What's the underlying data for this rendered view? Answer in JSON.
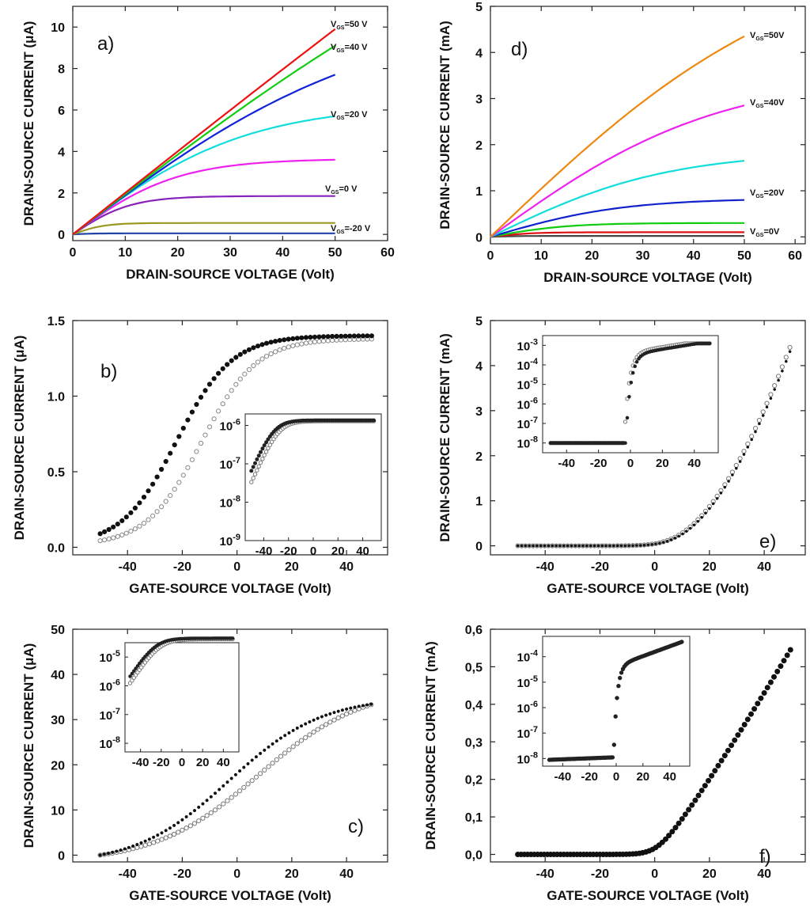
{
  "chart_data": [
    {
      "id": "a",
      "type": "line",
      "panel_label": "a)",
      "xlabel": "DRAIN-SOURCE VOLTAGE  (Volt)",
      "ylabel": "DRAIN-SOURCE CURRENT  (μA)",
      "xlim": [
        0,
        60
      ],
      "ylim": [
        -0.3,
        11
      ],
      "xticks": [
        0,
        10,
        20,
        30,
        40,
        50,
        60
      ],
      "yticks": [
        0,
        2,
        4,
        6,
        8,
        10
      ],
      "series": [
        {
          "name": "VGS=50 V",
          "color": "#ee1111",
          "sat": 9.9,
          "vknee": 250
        },
        {
          "name": "VGS=40 V",
          "color": "#11cc11",
          "sat": 9.1,
          "vknee": 110
        },
        {
          "name": "",
          "color": "#1122dd",
          "sat": 7.7,
          "vknee": 58
        },
        {
          "name": "VGS=20 V",
          "color": "#11dddd",
          "sat": 5.7,
          "vknee": 33
        },
        {
          "name": "",
          "color": "#ee22ee",
          "sat": 3.6,
          "vknee": 20
        },
        {
          "name": "VGS=0 V",
          "color": "#8822bb",
          "sat": 1.85,
          "vknee": 11
        },
        {
          "name": "",
          "color": "#999922",
          "sat": 0.55,
          "vknee": 6
        },
        {
          "name": "VGS=-20 V",
          "color": "#2244aa",
          "sat": 0.05,
          "vknee": 4
        }
      ],
      "annotations": [
        "VGS=50 V",
        "VGS=40 V",
        "VGS=20 V",
        "VGS=0 V",
        "VGS=-20 V"
      ]
    },
    {
      "id": "d",
      "type": "line",
      "panel_label": "d)",
      "xlabel": "DRAIN-SOURCE VOLTAGE  (Volt)",
      "ylabel": "DRAIN-SOURCE CURRENT  (mA)",
      "xlim": [
        0,
        62
      ],
      "ylim": [
        -0.15,
        5
      ],
      "xticks": [
        0,
        10,
        20,
        30,
        40,
        50,
        60
      ],
      "yticks": [
        0,
        1,
        2,
        3,
        4,
        5
      ],
      "series": [
        {
          "name": "VGS=50V",
          "color": "#ee8811",
          "sat": 4.35,
          "vknee": 62
        },
        {
          "name": "VGS=40V",
          "color": "#ee22ee",
          "sat": 2.85,
          "vknee": 45
        },
        {
          "name": "",
          "color": "#11dddd",
          "sat": 1.65,
          "vknee": 35
        },
        {
          "name": "VGS=20V",
          "color": "#1122cc",
          "sat": 0.8,
          "vknee": 26
        },
        {
          "name": "",
          "color": "#11cc11",
          "sat": 0.3,
          "vknee": 15
        },
        {
          "name": "",
          "color": "#dd1111",
          "sat": 0.1,
          "vknee": 8
        },
        {
          "name": "VGS=0V",
          "color": "#444444",
          "sat": 0.02,
          "vknee": 5
        }
      ],
      "annotations": [
        "VGS=50V",
        "VGS=40V",
        "VGS=20V",
        "VGS=0V"
      ]
    },
    {
      "id": "b",
      "type": "scatter",
      "panel_label": "b)",
      "xlabel": "GATE-SOURCE VOLTAGE (Volt)",
      "ylabel": "DRAIN-SOURCE CURRENT  (μA)",
      "xlim": [
        -60,
        55
      ],
      "ylim": [
        -0.05,
        1.5
      ],
      "xticks": [
        -40,
        -20,
        0,
        20,
        40
      ],
      "yticks": [
        0.0,
        0.5,
        1.0,
        1.5
      ],
      "ytick_labels": [
        "0.0",
        "0.5",
        "1.0",
        "1.5"
      ],
      "x_range": [
        -50,
        50
      ],
      "forward": {
        "max": 1.39,
        "center": -22,
        "width": 10
      },
      "reverse": {
        "max": 1.37,
        "center": -13,
        "width": 10
      },
      "inset": {
        "xlim": [
          -55,
          55
        ],
        "ylim_log": [
          -9,
          -5.7
        ],
        "xticks": [
          -40,
          -20,
          0,
          20,
          40
        ],
        "yticks_log": [
          -9,
          -8,
          -7,
          -6
        ],
        "ytick_labels": [
          "10-9",
          "10-8",
          "10-7",
          "10-6"
        ]
      }
    },
    {
      "id": "e",
      "type": "scatter",
      "panel_label": "e)",
      "xlabel": "GATE-SOURCE VOLTAGE (Volt)",
      "ylabel": "DRAIN-SOURCE CURRENT (mA)",
      "xlim": [
        -60,
        55
      ],
      "ylim": [
        -0.2,
        5
      ],
      "xticks": [
        -40,
        -20,
        0,
        20,
        40
      ],
      "yticks": [
        0,
        1,
        2,
        3,
        4,
        5
      ],
      "x_range": [
        -50,
        50
      ],
      "threshold": 2,
      "end_value": 4.5,
      "inset": {
        "xlim": [
          -55,
          55
        ],
        "ylim_log": [
          -8.5,
          -2.5
        ],
        "xticks": [
          -40,
          -20,
          0,
          20,
          40
        ],
        "yticks_log": [
          -8,
          -7,
          -6,
          -5,
          -4,
          -3
        ],
        "ytick_labels": [
          "10-8",
          "10-7",
          "10-6",
          "10-5",
          "10-4",
          "10-3"
        ]
      }
    },
    {
      "id": "c",
      "type": "scatter",
      "panel_label": "c)",
      "xlabel": "GATE-SOURCE VOLTAGE (Volt)",
      "ylabel": "DRAIN-SOURCE CURRENT (μA)",
      "xlim": [
        -60,
        55
      ],
      "ylim": [
        -1.5,
        50
      ],
      "xticks": [
        -40,
        -20,
        0,
        20,
        40
      ],
      "yticks": [
        0,
        10,
        20,
        30,
        40,
        50
      ],
      "x_range": [
        -50,
        50
      ],
      "forward": {
        "max": 38.5,
        "center": -3,
        "width": 17
      },
      "reverse": {
        "max": 40,
        "center": 8,
        "width": 19
      },
      "end_value": 33.5,
      "inset": {
        "xlim": [
          -55,
          55
        ],
        "ylim_log": [
          -8.3,
          -4.5
        ],
        "xticks": [
          -40,
          -20,
          0,
          20,
          40
        ],
        "yticks_log": [
          -8,
          -7,
          -6,
          -5
        ],
        "ytick_labels": [
          "10-8",
          "10-7",
          "10-6",
          "10-5"
        ]
      }
    },
    {
      "id": "f",
      "type": "scatter",
      "panel_label": "f)",
      "xlabel": "GATE-SOURCE VOLTAGE (Volt)",
      "ylabel": "DRAIN-SOURCE CURRENT (mA)",
      "xlim": [
        -60,
        55
      ],
      "ylim": [
        -0.02,
        0.6
      ],
      "xticks": [
        -40,
        -20,
        0,
        20,
        40
      ],
      "yticks": [
        0.0,
        0.1,
        0.2,
        0.3,
        0.4,
        0.5,
        0.6
      ],
      "ytick_labels": [
        "0,0",
        "0,1",
        "0,2",
        "0,3",
        "0,4",
        "0,5",
        "0,6"
      ],
      "x_range": [
        -50,
        50
      ],
      "threshold": 0,
      "end_value": 0.55,
      "inset": {
        "xlim": [
          -55,
          55
        ],
        "ylim_log": [
          -8.3,
          -3.2
        ],
        "xticks": [
          -40,
          -20,
          0,
          20,
          40
        ],
        "yticks_log": [
          -8,
          -7,
          -6,
          -5,
          -4
        ],
        "ytick_labels": [
          "10-8",
          "10-7",
          "10-6",
          "10-5",
          "10-4"
        ]
      }
    }
  ]
}
